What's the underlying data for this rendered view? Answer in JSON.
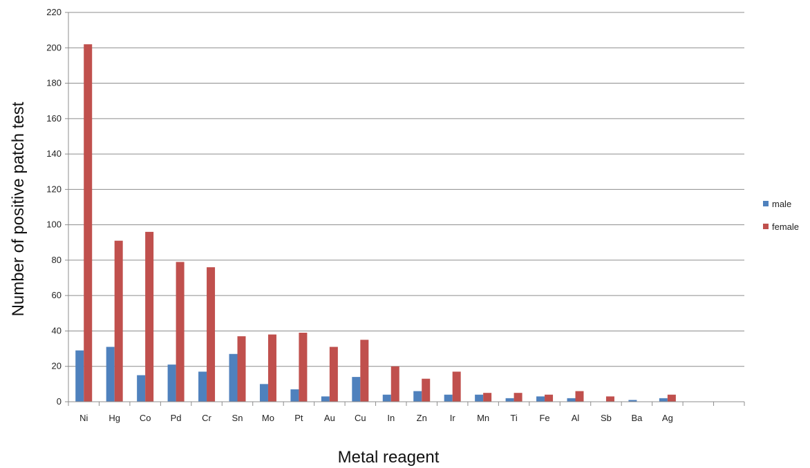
{
  "chart_data": {
    "type": "bar",
    "title": "",
    "xlabel": "Metal reagent",
    "ylabel": "Number of positive patch test",
    "ylim": [
      0,
      220
    ],
    "ytick_step": 20,
    "grid": true,
    "legend_position": "right",
    "categories": [
      "Ni",
      "Hg",
      "Co",
      "Pd",
      "Cr",
      "Sn",
      "Mo",
      "Pt",
      "Au",
      "Cu",
      "In",
      "Zn",
      "Ir",
      "Mn",
      "Ti",
      "Fe",
      "Al",
      "Sb",
      "Ba",
      "Ag",
      "",
      ""
    ],
    "series": [
      {
        "name": "male",
        "color": "#4F81BD",
        "values": [
          29,
          31,
          15,
          21,
          17,
          27,
          10,
          7,
          3,
          14,
          4,
          6,
          4,
          4,
          2,
          3,
          2,
          0,
          1,
          2,
          0,
          0
        ]
      },
      {
        "name": "female",
        "color": "#C0504D",
        "values": [
          202,
          91,
          96,
          79,
          76,
          37,
          38,
          39,
          31,
          35,
          20,
          13,
          17,
          5,
          5,
          4,
          6,
          3,
          0,
          4,
          0,
          0
        ]
      }
    ]
  }
}
